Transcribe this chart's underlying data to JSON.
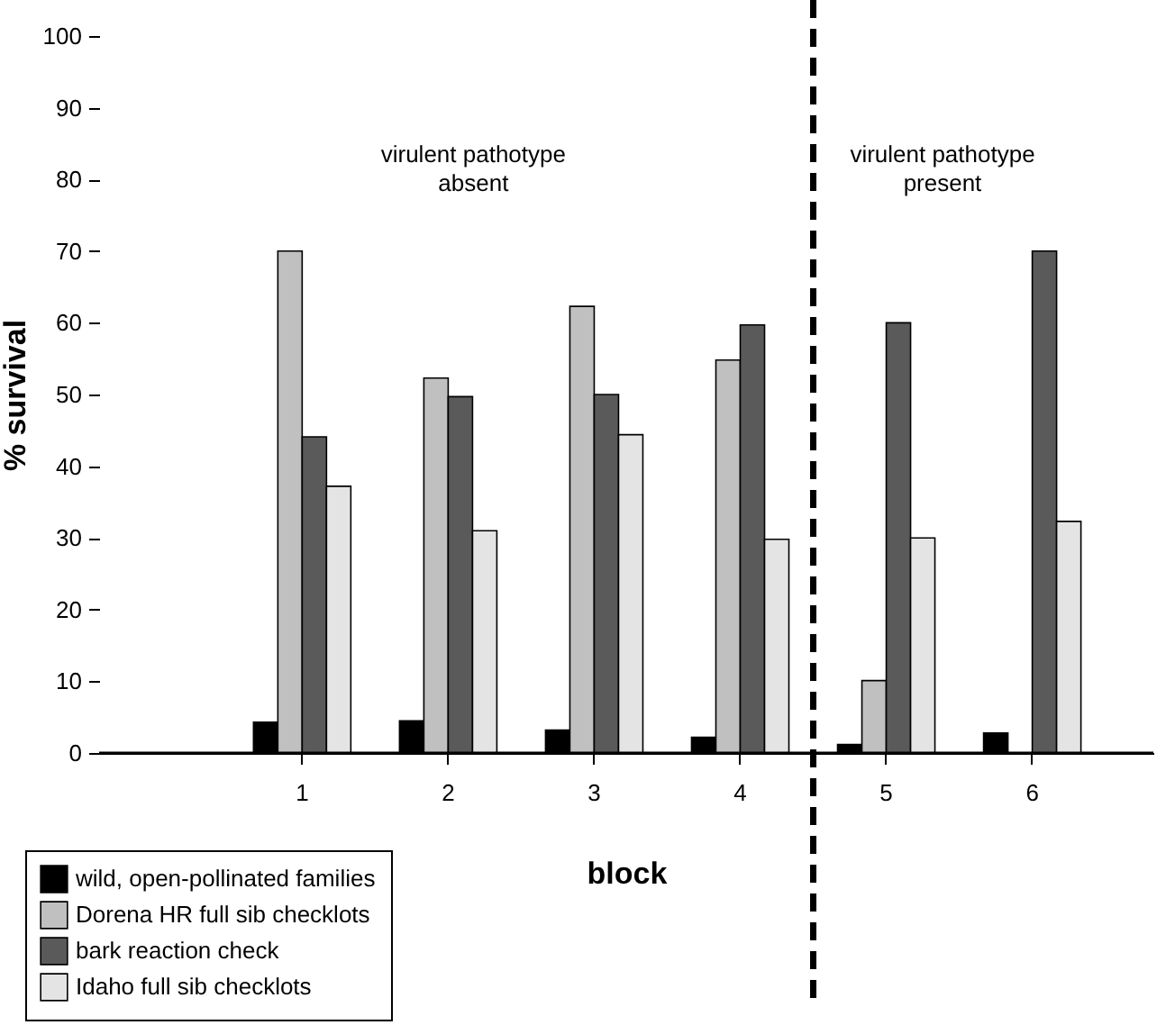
{
  "chart_data": {
    "type": "bar",
    "xlabel": "block",
    "ylabel": "% survival",
    "categories": [
      "1",
      "2",
      "3",
      "4",
      "5",
      "6"
    ],
    "series": [
      {
        "name": "wild, open-pollinated families",
        "color": "#000000",
        "values": [
          4.3,
          4.5,
          3.2,
          2.2,
          1.2,
          2.8
        ]
      },
      {
        "name": "Dorena HR full sib checklots",
        "color": "#c0c0c0",
        "values": [
          70,
          52.3,
          62.3,
          54.8,
          10.1,
          null
        ]
      },
      {
        "name": "bark reaction check",
        "color": "#5a5a5a",
        "values": [
          44.1,
          49.7,
          50,
          59.7,
          60,
          70
        ]
      },
      {
        "name": "Idaho full sib checklots",
        "color": "#e4e4e4",
        "values": [
          37.2,
          31,
          44.4,
          29.8,
          30,
          32.3
        ]
      }
    ],
    "ylim": [
      0,
      100
    ],
    "yticks": [
      0,
      10,
      20,
      30,
      40,
      50,
      60,
      70,
      80,
      90,
      100
    ],
    "annotations": [
      "virulent pathotype\nabsent",
      "virulent pathotype\npresent"
    ],
    "legend": "bottom left"
  }
}
